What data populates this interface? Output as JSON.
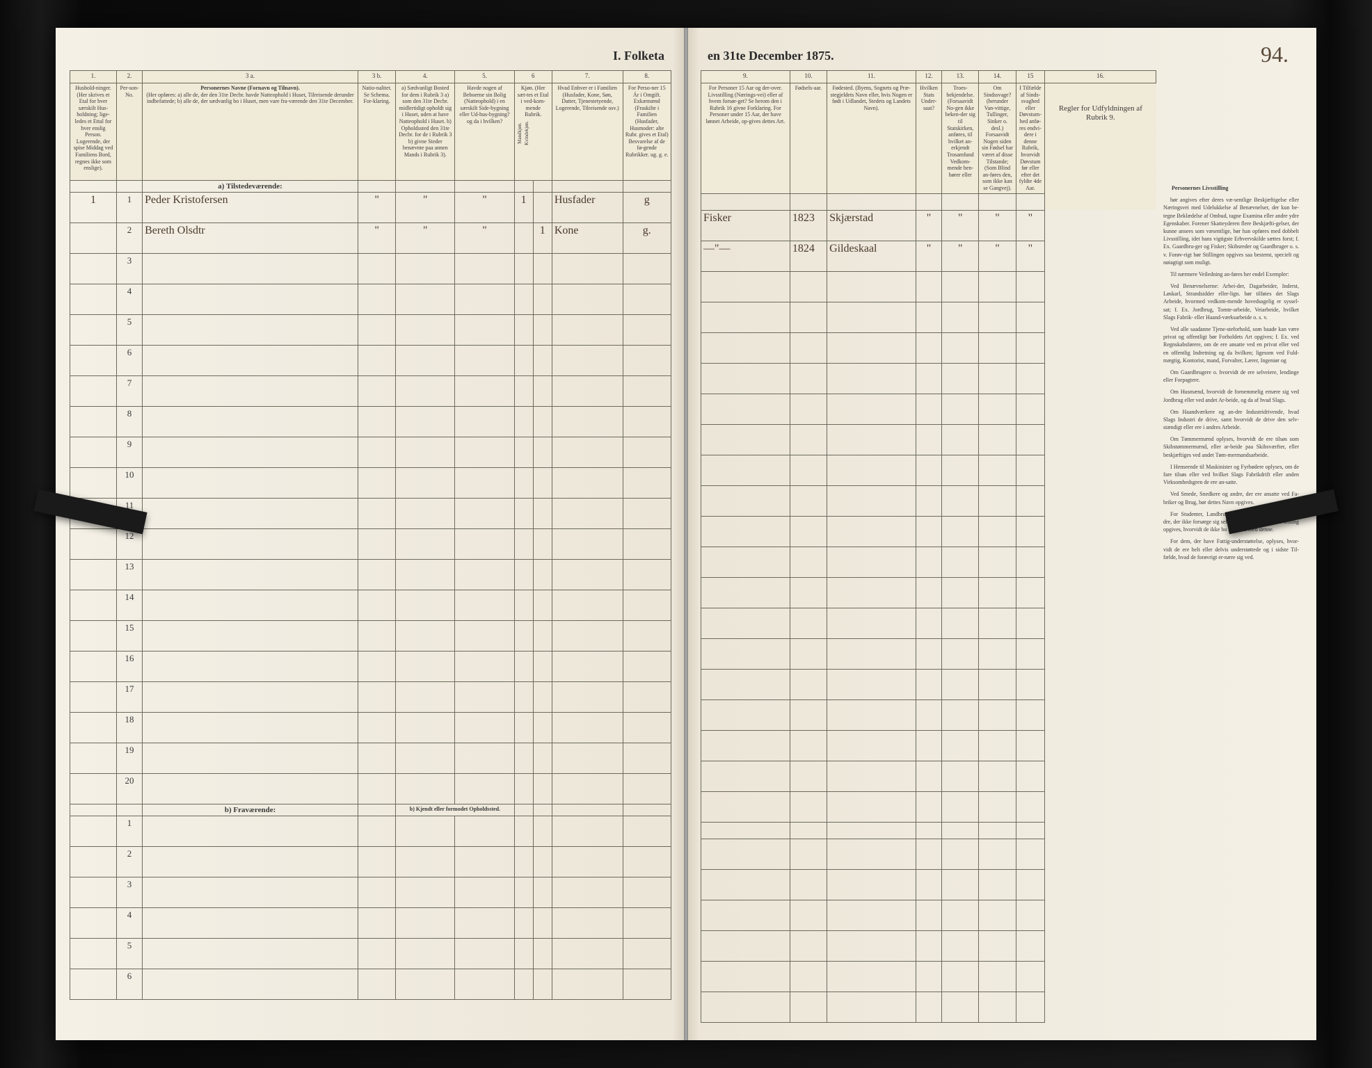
{
  "page_number": "94.",
  "title_left": "I. Folketa",
  "title_right": "en 31te December 1875.",
  "col_nums_left": [
    "1.",
    "2.",
    "3 a.",
    "3 b.",
    "4.",
    "5.",
    "6",
    "7.",
    "8."
  ],
  "col_nums_right": [
    "9.",
    "10.",
    "11.",
    "12.",
    "13.",
    "14.",
    "15",
    "16."
  ],
  "headers_left": {
    "c1": "Hushold-ninger. (Her skrives et Etal for hver særskilt Hus-holdning; lige-ledes et Ettal for hver enslig Person. Logerende, der spise Middag ved Familiens Bord, regnes ikke som enslige).",
    "c2": "Per-son-No.",
    "c3a_title": "Personernes Navne (Fornavn og Tilnavn).",
    "c3a_sub": "(Her opføres: a) alle de, der den 31te Decbr. havde Natteophold i Huset, Tilreisende derunder indbefattede; b) alle de, der sædvanlig bo i Huset, men vare fra-værende den 31te December.",
    "c3b": "Natio-nalitet. Se Schema. For-klaring.",
    "c4": "a) Sædvanligt Bosted for dem i Rubrik 3 a) som den 31te Decbr. midlertidigt opholdt sig i Huset, uden at have Natteophold i Huset. b) Opholdssted den 31te Decbr. for de i Rubrik 3 b) givne Steder benævnte paa annen Mands i Rubrik 3).",
    "c5": "Havde nogen af Beboerne sin Bolig (Natteophold) i en særskilt Side-bygning eller Ud-hus-bygning? og da i hvilken?",
    "c6": "Kjøn. (Her sæt-tes et Etal i ved-kom-mende Rubrik.",
    "c6a": "Mandkjøn.",
    "c6b": "Kvindekjøn.",
    "c7": "Hvad Enhver er i Familien (Husfader, Kone, Søn, Datter, Tjenestetyende, Logerende, Tilreisende osv.)",
    "c8": "For Perso-ner 15 Ár i Omgift. Exkæmænd (Fraskilte i Familien (Husfader, Husmoder: alte Rubr. gives et Etal) Besvarelse af de fø-gende Rubrikker. ug. g. e."
  },
  "headers_right": {
    "c9": "For Personer 15 Aar og der-over. Livsstilling (Nærings-vei) eller af hvem forsør-get? Se herom den i Rubrik 16 givne Forklaring. For Personer under 15 Aar, der have lønnet Arbeide, op-gives dettes Art.",
    "c10": "Fødsels-aar.",
    "c11": "Fødested. (Byens, Sognets og Præ-stegjeldets Navn eller, hvis Nogen er født i Udlandet, Stedets og Landets Navn).",
    "c12": "Hvilken Stats Under-saat?",
    "c13": "Troes-bekjendelse. (Forsaavidt No-gen ikke beken-der sig til Statskirken, anføres, til hvilket an-erkjendt Trosamfund Vedkom-mende hen-hører eller",
    "c14": "Om Sindssvage? (herunder Van-vittige, Tullinger, Sinker o. desl.) Forsaavidt Nogen siden sin Fødsel har været af disse Tilstande; (Som Blind an-føres den, som ikke kan se Gangvej).",
    "c15": "I Tilfælde af Sinds-svaghed eller Døvstum-hed anfø-res endvi-dere i denne Rubrik, hvorvidt Døvstum før eller efter det fyldte 4de Aar.",
    "c16_title": "Regler for Udfyldningen af Rubrik 9."
  },
  "section_a": "a) Tilstedeværende:",
  "section_b": "b) Fraværende:",
  "section_b_note": "b) Kjendt eller formodet Opholdssted.",
  "rows_a_count": 20,
  "rows_b_count": 6,
  "entries": [
    {
      "hh": "1",
      "pno": "1",
      "name": "Peder Kristofersen",
      "c3b": "\"",
      "c4": "\"",
      "c5": "\"",
      "sex_m": "1",
      "sex_k": "",
      "family": "Husfader",
      "civil": "g",
      "occ": "Fisker",
      "year": "1823",
      "place": "Skjærstad",
      "c12": "\"",
      "c13": "\"",
      "c14": "\"",
      "c15": "\""
    },
    {
      "hh": "",
      "pno": "2",
      "name": "Bereth Olsdtr",
      "c3b": "\"",
      "c4": "\"",
      "c5": "\"",
      "sex_m": "",
      "sex_k": "1",
      "family": "Kone",
      "civil": "g.",
      "occ": "—\"—",
      "year": "1824",
      "place": "Gildeskaal",
      "c12": "\"",
      "c13": "\"",
      "c14": "\"",
      "c15": "\""
    }
  ],
  "instructions_title": "Personernes Livsstilling",
  "instructions_paras": [
    "bør angives efter deres væ-sentlige Beskjæftigelse eller Næringsvei med Udelukkelse af Benævnelser, der kun be-tegne Beklædelse af Ombud, tagne Examina eller andre ydre Egenskaber. Forener Skatteyderen flere Beskjæfti-gelser, der kunne ansees som væsentlige, bør han opføres med dobbelt Livsstilling, idet hans vigtigste Erhvervskilde sættes forst; f. Ex. Gaardbru-ger og Fisker; Skibsreder og Gaardbruger o. s. v. Forøv-rigt bør Stillingen opgives saa bestemt, specielt og nøiagtigt som muligt.",
    "Til nærmere Veiledning an-føres her endel Exempler:",
    "Ved Benævnelserne: Arbei-der, Dagarbeider, Inderst, Løskarl, Strandsidder eller-lign. bør tilføies det Slags Arbeide, hvormed vedkom-mende hovedsagelig er syssel-sat; f. Ex. Jordbrug, Tomte-arbeide, Veiarbeide, hvilket Slags Fabrik- eller Haand-værksarbeide o. s. v.",
    "Ved alle saadanne Tjene-steforhold, som baade kan være privat og offentligt bør Forholdets Art opgives; f. Ex. ved Regnskabsførere, om de ere ansatte ved en privat eller ved en offentlig Indretning og da hvilken; ligesom ved Fuld-mægtig, Kontorist, mand, Forvalter, Lærer, Ingeniør og",
    "Om Gaardbrugere o. hvorvidt de ere selveiere, lendinge eller Forpagtere.",
    "Om Husmænd, hvorvidt de fornemmelig ernære sig ved Jordbrug eller ved andet Ar-beide, og da af hvad Slags.",
    "Om Haandværkere og an-dre Industridrivende, hvad Slags Industri de drive, samt hvorvidt de drive den selv-stændigt eller ere i andres Arbeide.",
    "Om Tømmermænd oplyses, hvorvidt de ere tilsøs som Skibstømmermænd, eller ar-beide paa Skibsværfter, eller beskjæftiges ved andet Tøm-mermandsarbeide.",
    "I Henseende til Maskinister og Fyrbødere oplyses, om de fare tilsøs eller ved hvilket Slags Fabrikdrift eller anden Virksomhedsgren de ere an-satte.",
    "Ved Smede, Snedkere og andre, der ere ansatte ved Fa-briker og Brug, bør dettes Navn opgives.",
    "For Studenter, Landbrugs-elever, Skoledisciple og an-dre, der ikke forsørge sig selv, bør Forsørgerens Livs-stilling opgives, hvorvidt de ikke bo sammen med denne.",
    "For dem, der have Fattig-understøttelse, oplyses, hvor-vidt de ere helt eller delvis understøttede og i sidste Til-fælde, hvad de forøvrigt er-nære sig ved."
  ],
  "colors": {
    "paper": "#f4f0e6",
    "ink": "#3a3a3a",
    "rule": "#6a6a5a",
    "handwriting": "#4a3a2a",
    "clip": "#1a1a1a",
    "bg": "#2a2a2a"
  }
}
